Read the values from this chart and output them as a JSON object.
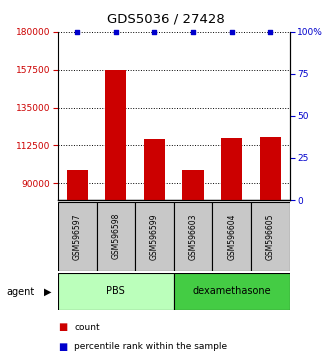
{
  "title": "GDS5036 / 27428",
  "samples": [
    "GSM596597",
    "GSM596598",
    "GSM596599",
    "GSM596603",
    "GSM596604",
    "GSM596605"
  ],
  "counts": [
    98000,
    157500,
    116000,
    98000,
    117000,
    117500
  ],
  "percentiles": [
    100,
    100,
    100,
    100,
    100,
    100
  ],
  "ylim_left": [
    80000,
    180000
  ],
  "yticks_left": [
    90000,
    112500,
    135000,
    157500,
    180000
  ],
  "ylim_right": [
    0,
    100
  ],
  "yticks_right": [
    0,
    25,
    50,
    75,
    100
  ],
  "bar_color": "#cc0000",
  "dot_color": "#0000cc",
  "groups": [
    {
      "label": "PBS",
      "indices": [
        0,
        1,
        2
      ],
      "color": "#bbffbb"
    },
    {
      "label": "dexamethasone",
      "indices": [
        3,
        4,
        5
      ],
      "color": "#44cc44"
    }
  ],
  "agent_label": "agent",
  "legend_count_label": "count",
  "legend_pct_label": "percentile rank within the sample",
  "tick_color_left": "#cc0000",
  "tick_color_right": "#0000cc",
  "bar_bottom": 80000,
  "sample_box_color": "#c8c8c8"
}
